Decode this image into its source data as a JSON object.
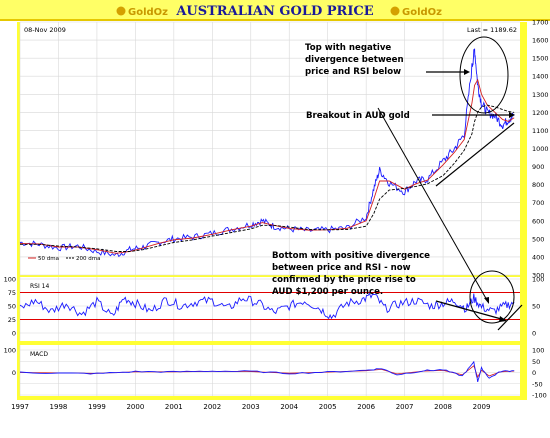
{
  "header": {
    "title": "AUSTRALIAN GOLD PRICE",
    "logo_left": "GoldOz",
    "logo_right": "GoldOz"
  },
  "price_panel": {
    "date_label": "08-Nov 2009",
    "last_label": "Last = 1189.62",
    "legend_50": "50 dma",
    "legend_200": "200 dma"
  },
  "rsi_panel": {
    "label": "RSI 14"
  },
  "macd_panel": {
    "label": "MACD"
  },
  "annotations": {
    "top_divergence": [
      "Top with negative",
      "divergence between",
      "price and RSI below"
    ],
    "breakout": "Breakout in AUD gold",
    "bottom_divergence": [
      "Bottom with positive divergence",
      "between price and RSI - now",
      "confirmed by the price rise to",
      "AUD $1,200 per ounce."
    ]
  },
  "colors": {
    "background": "#ffffff",
    "header_bg": "#ffff66",
    "frame_yellow": "#ffff33",
    "price_line": "#1a1aff",
    "ma50": "#d42020",
    "ma200": "#000000",
    "rsi_line": "#1a1aff",
    "rsi_guides": "#e00000",
    "macd_line": "#1a1aff",
    "macd_signal": "#d42020"
  },
  "chart_data": [
    {
      "type": "line",
      "title": "AUSTRALIAN GOLD PRICE",
      "xlabel": "",
      "ylabel": "",
      "x_ticks": [
        "1997",
        "1998",
        "1999",
        "2000",
        "2001",
        "2002",
        "2003",
        "2004",
        "2005",
        "2006",
        "2007",
        "2008",
        "2009"
      ],
      "ylim": [
        300,
        1700
      ],
      "y_ticks": [
        300,
        400,
        500,
        600,
        700,
        800,
        900,
        1000,
        1100,
        1200,
        1300,
        1400,
        1500,
        1600,
        1700
      ],
      "grid": true,
      "x": [
        1997.0,
        1997.5,
        1998.0,
        1998.5,
        1999.0,
        1999.5,
        1999.85,
        2000.2,
        2000.6,
        2001.0,
        2001.5,
        2002.0,
        2002.5,
        2003.0,
        2003.3,
        2003.6,
        2004.0,
        2004.5,
        2005.0,
        2005.5,
        2006.0,
        2006.2,
        2006.35,
        2006.6,
        2007.0,
        2007.3,
        2007.6,
        2008.0,
        2008.3,
        2008.55,
        2008.75,
        2008.82,
        2008.9,
        2009.0,
        2009.15,
        2009.35,
        2009.55,
        2009.7,
        2009.85
      ],
      "series": [
        {
          "name": "Price",
          "values": [
            480,
            470,
            450,
            460,
            430,
            410,
            440,
            455,
            480,
            500,
            510,
            530,
            555,
            580,
            600,
            570,
            555,
            545,
            550,
            560,
            620,
            780,
            880,
            810,
            760,
            820,
            830,
            930,
            1000,
            1080,
            1450,
            1550,
            1350,
            1250,
            1200,
            1180,
            1130,
            1160,
            1190
          ]
        },
        {
          "name": "50 dma",
          "values": [
            475,
            472,
            455,
            455,
            440,
            420,
            430,
            450,
            475,
            495,
            505,
            525,
            550,
            570,
            590,
            575,
            558,
            548,
            550,
            558,
            600,
            720,
            820,
            820,
            775,
            805,
            825,
            910,
            980,
            1050,
            1250,
            1350,
            1380,
            1300,
            1240,
            1200,
            1160,
            1150,
            1170
          ]
        },
        {
          "name": "200 dma",
          "values": [
            470,
            470,
            460,
            455,
            445,
            430,
            430,
            440,
            460,
            480,
            495,
            515,
            535,
            555,
            575,
            575,
            565,
            552,
            550,
            552,
            570,
            640,
            720,
            770,
            780,
            790,
            805,
            850,
            920,
            990,
            1080,
            1150,
            1200,
            1230,
            1240,
            1230,
            1215,
            1205,
            1200
          ]
        }
      ],
      "annotations": [
        "Top with negative divergence between price and RSI below",
        "Breakout in AUD gold",
        "Bottom with positive divergence between price and RSI - now confirmed by the price rise to AUD $1,200 per ounce."
      ]
    },
    {
      "type": "line",
      "title": "RSI 14",
      "ylim": [
        0,
        100
      ],
      "y_ticks_left": [
        100,
        75,
        50,
        25,
        0
      ],
      "y_ticks_right": [
        100,
        50,
        0
      ],
      "guides": [
        75,
        25
      ],
      "x": [
        1997.0,
        1997.4,
        1997.8,
        1998.2,
        1998.6,
        1999.0,
        1999.4,
        1999.7,
        2000.0,
        2000.4,
        2000.8,
        2001.2,
        2001.6,
        2002.0,
        2002.4,
        2002.8,
        2003.2,
        2003.6,
        2004.0,
        2004.4,
        2004.8,
        2005.1,
        2005.5,
        2005.9,
        2006.2,
        2006.5,
        2006.9,
        2007.3,
        2007.7,
        2008.0,
        2008.3,
        2008.6,
        2008.8,
        2009.0,
        2009.3,
        2009.6,
        2009.85
      ],
      "series": [
        {
          "name": "RSI 14",
          "values": [
            45,
            60,
            40,
            55,
            35,
            58,
            30,
            65,
            55,
            40,
            62,
            50,
            58,
            60,
            45,
            65,
            55,
            38,
            50,
            60,
            45,
            30,
            55,
            62,
            70,
            45,
            55,
            60,
            50,
            55,
            60,
            45,
            65,
            48,
            40,
            50,
            57
          ]
        }
      ]
    },
    {
      "type": "line",
      "title": "MACD",
      "ylim": [
        -100,
        100
      ],
      "y_ticks_left": [
        100,
        0
      ],
      "y_ticks_right": [
        100,
        50,
        0,
        -50,
        -100
      ],
      "x": [
        1997.0,
        1998.0,
        1999.0,
        2000.0,
        2001.0,
        2002.0,
        2003.0,
        2004.0,
        2005.0,
        2006.0,
        2006.4,
        2006.8,
        2007.5,
        2008.0,
        2008.5,
        2008.8,
        2008.9,
        2009.0,
        2009.2,
        2009.5,
        2009.85
      ],
      "series": [
        {
          "name": "MACD",
          "values": [
            0,
            -3,
            -5,
            4,
            3,
            6,
            5,
            -4,
            2,
            10,
            18,
            -10,
            8,
            12,
            -15,
            45,
            -40,
            20,
            -25,
            5,
            8
          ]
        },
        {
          "name": "Signal",
          "values": [
            0,
            -2,
            -4,
            3,
            3,
            5,
            4,
            -3,
            2,
            8,
            14,
            -6,
            6,
            10,
            -10,
            30,
            -20,
            10,
            -15,
            3,
            6
          ]
        }
      ]
    }
  ]
}
